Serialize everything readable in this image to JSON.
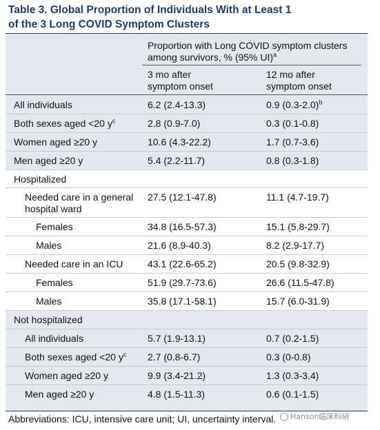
{
  "title": {
    "line1": "Table 3. Global Proportion of Individuals With at Least 1",
    "line2": "of the 3 Long COVID Symptom Clusters"
  },
  "header": {
    "group_line1": "Proportion with Long COVID symptom clusters",
    "group_line2": "among survivors, % (95% UI)",
    "group_sup": "a",
    "col1_line1": "3 mo after",
    "col1_line2": "symptom onset",
    "col2_line1": "12 mo after",
    "col2_line2": "symptom onset"
  },
  "rows": [
    {
      "label": "All individuals",
      "sup": "",
      "c1": "6.2 (2.4-13.3)",
      "c2": "0.9 (0.3-2.0)",
      "c2_sup": "b"
    },
    {
      "label": "Both sexes aged <20 y",
      "sup": "c",
      "c1": "2.8 (0.9-7.0)",
      "c2": "0.3 (0.1-0.8)",
      "c2_sup": ""
    },
    {
      "label": "Women aged ≥20 y",
      "sup": "",
      "c1": "10.6 (4.3-22.2)",
      "c2": "1.7 (0.7-3.6)",
      "c2_sup": ""
    },
    {
      "label": "Men aged ≥20 y",
      "sup": "",
      "c1": "5.4 (2.2-11.7)",
      "c2": "0.8 (0.3-1.8)",
      "c2_sup": ""
    },
    {
      "label": "Hospitalized",
      "sup": "",
      "c1": "",
      "c2": "",
      "c2_sup": ""
    },
    {
      "label": "Needed care in a general",
      "label2": "hospital ward",
      "sup": "",
      "c1": "27.5 (12.1-47.8)",
      "c2": "11.1 (4.7-19.7)",
      "c2_sup": ""
    },
    {
      "label": "Females",
      "sup": "",
      "c1": "34.8 (16.5-57.3)",
      "c2": "15.1 (5.8-29.7)",
      "c2_sup": ""
    },
    {
      "label": "Males",
      "sup": "",
      "c1": "21.6 (8.9-40.3)",
      "c2": "8.2 (2.9-17.7)",
      "c2_sup": ""
    },
    {
      "label": "Needed care in an ICU",
      "sup": "",
      "c1": "43.1 (22.6-65.2)",
      "c2": "20.5 (9.8-32.9)",
      "c2_sup": ""
    },
    {
      "label": "Females",
      "sup": "",
      "c1": "51.9 (29.7-73.6)",
      "c2": "26.6 (11.5-47.8)",
      "c2_sup": ""
    },
    {
      "label": "Males",
      "sup": "",
      "c1": "35.8 (17.1-58.1)",
      "c2": "15.7 (6.0-31.9)",
      "c2_sup": ""
    },
    {
      "label": "Not hospitalized",
      "sup": "",
      "c1": "",
      "c2": "",
      "c2_sup": ""
    },
    {
      "label": "All individuals",
      "sup": "",
      "c1": "5.7 (1.9-13.1)",
      "c2": "0.7 (0.2-1.5)",
      "c2_sup": ""
    },
    {
      "label": "Both sexes aged <20 y",
      "sup": "c",
      "c1": "2.7 (0.8-6.7)",
      "c2": "0.3 (0-0.8)",
      "c2_sup": ""
    },
    {
      "label": "Women aged ≥20 y",
      "sup": "",
      "c1": "9.9 (3.4-21.2)",
      "c2": "1.3 (0.3-3.4)",
      "c2_sup": ""
    },
    {
      "label": "Men aged ≥20 y",
      "sup": "",
      "c1": "4.8 (1.5-11.3)",
      "c2": "0.6 (0.1-1.5)",
      "c2_sup": ""
    }
  ],
  "footer": "Abbreviations: ICU, intensive care unit; UI, uncertainty interval.",
  "watermark": "Hanson临床科研",
  "colors": {
    "title": "#1f3a5f",
    "band": "#e3e8ee",
    "alt_band": "#ffffff"
  }
}
